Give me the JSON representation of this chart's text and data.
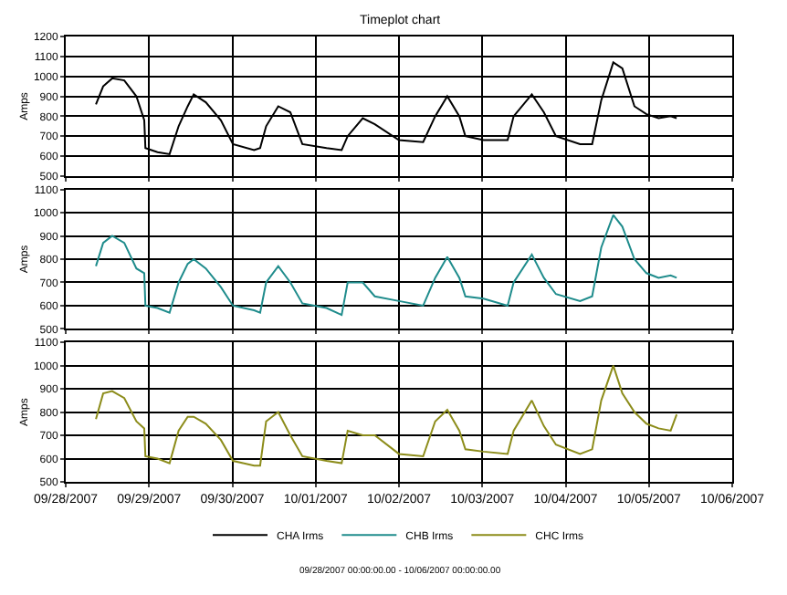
{
  "chart_data": [
    {
      "type": "line",
      "title": "Timeplot chart",
      "ylabel": "Amps",
      "grid": true,
      "tick_labels": "y",
      "legend": "bottom",
      "xlim": [
        "2007-09-28",
        "2007-10-06"
      ],
      "xticks": [
        {
          "value": "2007-09-28",
          "label": null
        },
        {
          "value": "2007-09-29",
          "label": null
        },
        {
          "value": "2007-09-30",
          "label": null
        },
        {
          "value": "2007-10-01",
          "label": null
        },
        {
          "value": "2007-10-02",
          "label": null
        },
        {
          "value": "2007-10-03",
          "label": null
        },
        {
          "value": "2007-10-04",
          "label": null
        },
        {
          "value": "2007-10-05",
          "label": null
        },
        {
          "value": "2007-10-06",
          "label": null
        }
      ],
      "ylim": [
        500,
        1200
      ],
      "yticks": [
        500,
        600,
        700,
        800,
        900,
        1000,
        1100,
        1200
      ],
      "x": [
        "2007-09-28T08:42",
        "2007-09-28T10:47",
        "2007-09-28T13:23",
        "2007-09-28T16:52",
        "2007-09-28T20:21",
        "2007-09-28T22:37",
        "2007-09-28T22:57",
        "2007-09-29T02:26",
        "2007-09-29T05:55",
        "2007-09-29T08:31",
        "2007-09-29T11:08",
        "2007-09-29T12:52",
        "2007-09-29T16:21",
        "2007-09-29T20:42",
        "2007-09-30T00:10",
        "2007-09-30T06:16",
        "2007-09-30T08:00",
        "2007-09-30T09:44",
        "2007-09-30T13:13",
        "2007-09-30T16:42",
        "2007-09-30T20:10",
        "2007-10-01T03:08",
        "2007-10-01T07:29",
        "2007-10-01T09:13",
        "2007-10-01T13:34",
        "2007-10-01T17:02",
        "2007-10-02T00:00",
        "2007-10-02T06:58",
        "2007-10-02T10:26",
        "2007-10-02T13:55",
        "2007-10-02T17:23",
        "2007-10-02T19:08",
        "2007-10-03T00:21",
        "2007-10-03T07:18",
        "2007-10-03T09:02",
        "2007-10-03T14:16",
        "2007-10-03T17:44",
        "2007-10-03T21:13",
        "2007-10-04T04:10",
        "2007-10-04T07:39",
        "2007-10-04T10:16",
        "2007-10-04T13:44",
        "2007-10-04T16:21",
        "2007-10-04T19:50",
        "2007-10-04T23:18",
        "2007-10-05T02:47",
        "2007-10-05T06:16",
        "2007-10-05T08:00"
      ],
      "series": [
        {
          "name": "CHA Irms",
          "color": "#000000",
          "values": [
            860,
            950,
            990,
            980,
            900,
            780,
            640,
            620,
            610,
            750,
            850,
            910,
            870,
            780,
            660,
            630,
            640,
            750,
            850,
            820,
            660,
            640,
            630,
            700,
            790,
            760,
            680,
            670,
            800,
            900,
            800,
            700,
            680,
            680,
            800,
            910,
            820,
            700,
            660,
            660,
            880,
            1070,
            1040,
            850,
            810,
            790,
            800,
            790
          ]
        }
      ]
    },
    {
      "type": "line",
      "ylabel": "Amps",
      "grid": true,
      "tick_labels": "y",
      "xlim": [
        "2007-09-28",
        "2007-10-06"
      ],
      "xticks": [
        {
          "value": "2007-09-28",
          "label": null
        },
        {
          "value": "2007-09-29",
          "label": null
        },
        {
          "value": "2007-09-30",
          "label": null
        },
        {
          "value": "2007-10-01",
          "label": null
        },
        {
          "value": "2007-10-02",
          "label": null
        },
        {
          "value": "2007-10-03",
          "label": null
        },
        {
          "value": "2007-10-04",
          "label": null
        },
        {
          "value": "2007-10-05",
          "label": null
        },
        {
          "value": "2007-10-06",
          "label": null
        }
      ],
      "ylim": [
        500,
        1100
      ],
      "yticks": [
        500,
        600,
        700,
        800,
        900,
        1000,
        1100
      ],
      "x": [
        "2007-09-28T08:42",
        "2007-09-28T10:47",
        "2007-09-28T13:23",
        "2007-09-28T16:52",
        "2007-09-28T20:21",
        "2007-09-28T22:37",
        "2007-09-28T22:57",
        "2007-09-29T02:26",
        "2007-09-29T05:55",
        "2007-09-29T08:31",
        "2007-09-29T11:08",
        "2007-09-29T12:52",
        "2007-09-29T16:21",
        "2007-09-29T20:42",
        "2007-09-30T00:10",
        "2007-09-30T06:16",
        "2007-09-30T08:00",
        "2007-09-30T09:44",
        "2007-09-30T13:13",
        "2007-09-30T16:42",
        "2007-09-30T20:10",
        "2007-10-01T03:08",
        "2007-10-01T07:29",
        "2007-10-01T09:13",
        "2007-10-01T13:34",
        "2007-10-01T17:02",
        "2007-10-02T00:00",
        "2007-10-02T06:58",
        "2007-10-02T10:26",
        "2007-10-02T13:55",
        "2007-10-02T17:23",
        "2007-10-02T19:08",
        "2007-10-03T00:21",
        "2007-10-03T07:18",
        "2007-10-03T09:02",
        "2007-10-03T14:16",
        "2007-10-03T17:44",
        "2007-10-03T21:13",
        "2007-10-04T04:10",
        "2007-10-04T07:39",
        "2007-10-04T10:16",
        "2007-10-04T13:44",
        "2007-10-04T16:21",
        "2007-10-04T19:50",
        "2007-10-04T23:18",
        "2007-10-05T02:47",
        "2007-10-05T06:16",
        "2007-10-05T08:00"
      ],
      "series": [
        {
          "name": "CHB Irms",
          "color": "#1f8c8c",
          "values": [
            770,
            870,
            900,
            870,
            760,
            740,
            600,
            590,
            570,
            700,
            780,
            800,
            760,
            680,
            600,
            580,
            570,
            700,
            770,
            700,
            610,
            590,
            560,
            700,
            700,
            640,
            620,
            600,
            720,
            810,
            720,
            640,
            630,
            600,
            700,
            820,
            720,
            650,
            620,
            640,
            850,
            990,
            940,
            800,
            740,
            720,
            730,
            720
          ]
        }
      ]
    },
    {
      "type": "line",
      "ylabel": "Amps",
      "grid": true,
      "annotations": [
        "09/28/2007 00:00:00.00 - 10/06/2007 00:00:00.00"
      ],
      "xlim": [
        "2007-09-28",
        "2007-10-06"
      ],
      "xticks": [
        {
          "value": "2007-09-28",
          "label": "09/28/2007"
        },
        {
          "value": "2007-09-29",
          "label": "09/29/2007"
        },
        {
          "value": "2007-09-30",
          "label": "09/30/2007"
        },
        {
          "value": "2007-10-01",
          "label": "10/01/2007"
        },
        {
          "value": "2007-10-02",
          "label": "10/02/2007"
        },
        {
          "value": "2007-10-03",
          "label": "10/03/2007"
        },
        {
          "value": "2007-10-04",
          "label": "10/04/2007"
        },
        {
          "value": "2007-10-05",
          "label": "10/05/2007"
        },
        {
          "value": "2007-10-06",
          "label": "10/06/2007"
        }
      ],
      "ylim": [
        500,
        1100
      ],
      "yticks": [
        500,
        600,
        700,
        800,
        900,
        1000,
        1100
      ],
      "x": [
        "2007-09-28T08:42",
        "2007-09-28T10:47",
        "2007-09-28T13:23",
        "2007-09-28T16:52",
        "2007-09-28T20:21",
        "2007-09-28T22:37",
        "2007-09-28T22:57",
        "2007-09-29T02:26",
        "2007-09-29T05:55",
        "2007-09-29T08:31",
        "2007-09-29T11:08",
        "2007-09-29T12:52",
        "2007-09-29T16:21",
        "2007-09-29T20:42",
        "2007-09-30T00:10",
        "2007-09-30T06:16",
        "2007-09-30T08:00",
        "2007-09-30T09:44",
        "2007-09-30T13:13",
        "2007-09-30T16:42",
        "2007-09-30T20:10",
        "2007-10-01T03:08",
        "2007-10-01T07:29",
        "2007-10-01T09:13",
        "2007-10-01T13:34",
        "2007-10-01T17:02",
        "2007-10-02T00:00",
        "2007-10-02T06:58",
        "2007-10-02T10:26",
        "2007-10-02T13:55",
        "2007-10-02T17:23",
        "2007-10-02T19:08",
        "2007-10-03T00:21",
        "2007-10-03T07:18",
        "2007-10-03T09:02",
        "2007-10-03T14:16",
        "2007-10-03T17:44",
        "2007-10-03T21:13",
        "2007-10-04T04:10",
        "2007-10-04T07:39",
        "2007-10-04T10:16",
        "2007-10-04T13:44",
        "2007-10-04T16:21",
        "2007-10-04T19:50",
        "2007-10-04T23:18",
        "2007-10-05T02:47",
        "2007-10-05T06:16",
        "2007-10-05T08:00"
      ],
      "series": [
        {
          "name": "CHC Irms",
          "color": "#8c8c1a",
          "values": [
            770,
            880,
            890,
            860,
            760,
            730,
            610,
            600,
            580,
            720,
            780,
            780,
            750,
            680,
            590,
            570,
            570,
            760,
            800,
            700,
            610,
            590,
            580,
            720,
            700,
            700,
            620,
            610,
            760,
            810,
            720,
            640,
            630,
            620,
            720,
            850,
            740,
            660,
            620,
            640,
            850,
            1000,
            880,
            800,
            750,
            730,
            720,
            790
          ]
        }
      ]
    }
  ]
}
